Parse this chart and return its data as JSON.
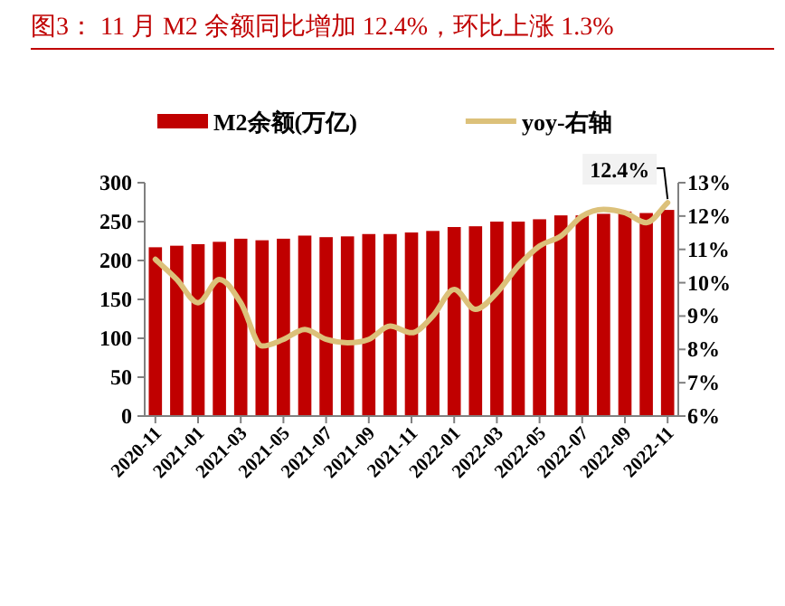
{
  "chart_data": {
    "type": "bar",
    "title": "图3： 11 月 M2 余额同比增加 12.4%，环比上涨 1.3%",
    "categories": [
      "2020-11",
      null,
      "2021-01",
      null,
      "2021-03",
      null,
      "2021-05",
      null,
      "2021-07",
      null,
      "2021-09",
      null,
      "2021-11",
      null,
      "2022-01",
      null,
      "2022-03",
      null,
      "2022-05",
      null,
      "2022-07",
      null,
      "2022-09",
      null,
      "2022-11"
    ],
    "series": [
      {
        "name": "M2余额(万亿)",
        "color": "#c00000",
        "values": [
          217,
          219,
          221,
          224,
          228,
          226,
          228,
          232,
          230,
          231,
          234,
          234,
          236,
          238,
          243,
          244,
          250,
          250,
          253,
          258,
          258,
          260,
          263,
          261,
          265
        ]
      },
      {
        "name": "yoy-右轴",
        "type": "line",
        "axis": "y2",
        "color": "#dcc17a",
        "values": [
          10.7,
          10.1,
          9.4,
          10.1,
          9.4,
          8.1,
          8.3,
          8.6,
          8.3,
          8.2,
          8.3,
          8.7,
          8.5,
          9.0,
          9.8,
          9.2,
          9.7,
          10.5,
          11.1,
          11.4,
          12.0,
          12.2,
          12.1,
          11.8,
          12.4
        ]
      }
    ],
    "ylim": [
      0,
      300
    ],
    "yticks": [
      0,
      50,
      100,
      150,
      200,
      250,
      300
    ],
    "y2lim": [
      6,
      13
    ],
    "y2ticks": [
      {
        "value": 6,
        "label": "6%"
      },
      {
        "value": 7,
        "label": "7%"
      },
      {
        "value": 8,
        "label": "8%"
      },
      {
        "value": 9,
        "label": "9%"
      },
      {
        "value": 10,
        "label": "10%"
      },
      {
        "value": 11,
        "label": "11%"
      },
      {
        "value": 12,
        "label": "12%"
      },
      {
        "value": 13,
        "label": "13%"
      }
    ],
    "annotations": [
      "12.4%"
    ],
    "legend": "top"
  }
}
